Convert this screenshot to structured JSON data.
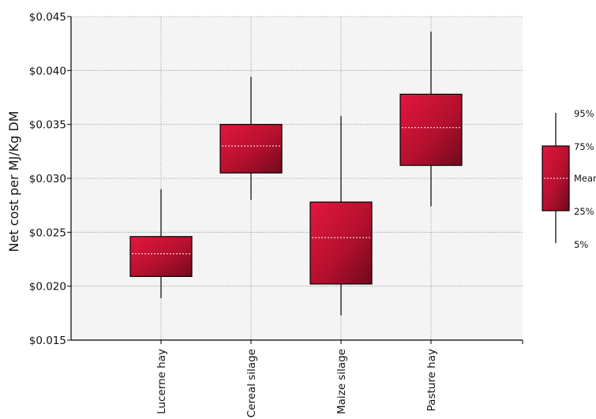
{
  "chart_data": {
    "type": "box",
    "ylabel": "Net cost per MJ/Kg DM",
    "ylim": [
      0.015,
      0.045
    ],
    "yticks": [
      "$0.015",
      "$0.020",
      "$0.025",
      "$0.030",
      "$0.035",
      "$0.040",
      "$0.045"
    ],
    "ytick_values": [
      0.015,
      0.02,
      0.025,
      0.03,
      0.035,
      0.04,
      0.045
    ],
    "grid": true,
    "categories": [
      "Lucerne hay",
      "Cereal silage",
      "Maize silage",
      "Pasture hay"
    ],
    "boxes": [
      {
        "category": "Lucerne hay",
        "p5": 0.0189,
        "p25": 0.0209,
        "mean": 0.023,
        "p75": 0.0246,
        "p95": 0.029
      },
      {
        "category": "Cereal silage",
        "p5": 0.028,
        "p25": 0.0305,
        "mean": 0.033,
        "p75": 0.035,
        "p95": 0.0394
      },
      {
        "category": "Maize silage",
        "p5": 0.0173,
        "p25": 0.0202,
        "mean": 0.0245,
        "p75": 0.0278,
        "p95": 0.0358
      },
      {
        "category": "Pasture hay",
        "p5": 0.0274,
        "p25": 0.0312,
        "mean": 0.0347,
        "p75": 0.0378,
        "p95": 0.0436
      }
    ],
    "box_color": "#c8102e",
    "legend": {
      "position": "right",
      "labels": [
        "95%",
        "75%",
        "Mean",
        "25%",
        "5%"
      ]
    }
  }
}
